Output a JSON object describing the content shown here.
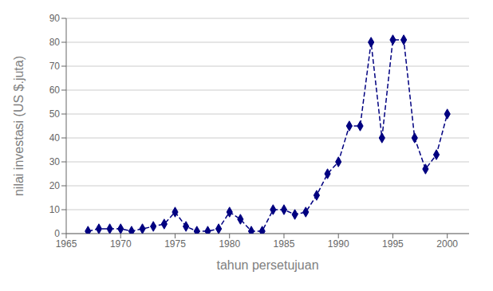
{
  "chart_data": {
    "type": "line",
    "x": [
      1967,
      1968,
      1969,
      1970,
      1971,
      1972,
      1973,
      1974,
      1975,
      1976,
      1977,
      1978,
      1979,
      1980,
      1981,
      1982,
      1983,
      1984,
      1985,
      1986,
      1987,
      1988,
      1989,
      1990,
      1991,
      1992,
      1993,
      1994,
      1995,
      1996,
      1997,
      1998,
      1999,
      2000
    ],
    "values": [
      1,
      2,
      2,
      2,
      1,
      2,
      3,
      4,
      9,
      3,
      1,
      1,
      2,
      9,
      6,
      1,
      1,
      10,
      10,
      8,
      9,
      16,
      25,
      30,
      45,
      45,
      80,
      40,
      81,
      81,
      40,
      27,
      33,
      50
    ],
    "color": "#000080",
    "marker": "diamond",
    "line_style": "dashed",
    "xlabel": "tahun persetujuan",
    "ylabel": "nilai investasi (US $.juta)",
    "xlim": [
      1965,
      2002
    ],
    "ylim": [
      0,
      90
    ],
    "xticks": [
      1965,
      1970,
      1975,
      1980,
      1985,
      1990,
      1995,
      2000
    ],
    "yticks": [
      0,
      10,
      20,
      30,
      40,
      50,
      60,
      70,
      80,
      90
    ],
    "grid": "y"
  }
}
